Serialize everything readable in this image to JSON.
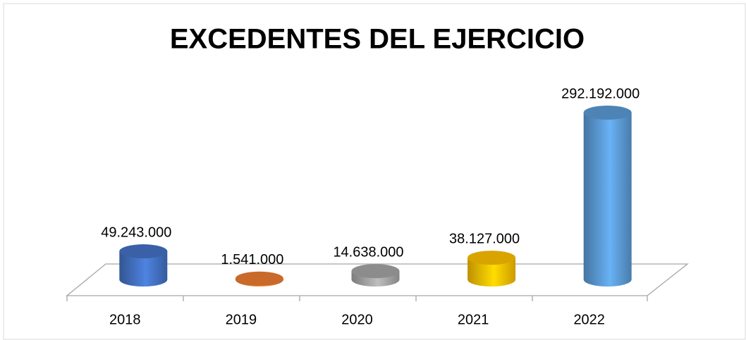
{
  "chart_data": {
    "type": "bar3d",
    "title": "EXCEDENTES DEL EJERCICIO",
    "categories": [
      "2018",
      "2019",
      "2020",
      "2021",
      "2022"
    ],
    "values": [
      49243000,
      1541000,
      14638000,
      38127000,
      292192000
    ],
    "value_labels": [
      "49.243.000",
      "1.541.000",
      "14.638.000",
      "38.127.000",
      "292.192.000"
    ],
    "colors": [
      "#4472c4",
      "#ed7d31",
      "#a5a5a5",
      "#ffc000",
      "#5b9bd5"
    ]
  }
}
